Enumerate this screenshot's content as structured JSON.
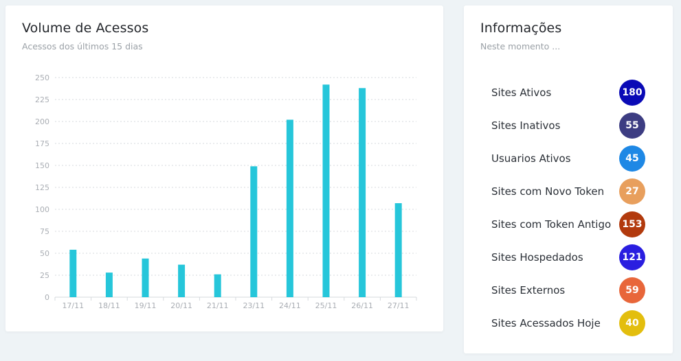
{
  "chart_card": {
    "title": "Volume de Acessos",
    "subtitle": "Acessos dos últimos 15 dias"
  },
  "chart_data": {
    "type": "bar",
    "categories": [
      "17/11",
      "18/11",
      "19/11",
      "20/11",
      "21/11",
      "23/11",
      "24/11",
      "25/11",
      "26/11",
      "27/11"
    ],
    "values": [
      54,
      28,
      44,
      37,
      26,
      149,
      202,
      242,
      238,
      107
    ],
    "ylim": [
      0,
      250
    ],
    "yticks": [
      0,
      25,
      50,
      75,
      100,
      125,
      150,
      175,
      200,
      225,
      250
    ],
    "grid": true,
    "bar_color": "#26c6da",
    "title": "",
    "xlabel": "",
    "ylabel": ""
  },
  "info_card": {
    "title": "Informações",
    "subtitle": "Neste momento ...",
    "items": [
      {
        "label": "Sites Ativos",
        "value": "180",
        "color": "#0a0ab6"
      },
      {
        "label": "Sites Inativos",
        "value": "55",
        "color": "#3d3d82"
      },
      {
        "label": "Usuarios Ativos",
        "value": "45",
        "color": "#1e88e5"
      },
      {
        "label": "Sites com Novo Token",
        "value": "27",
        "color": "#e89f5d"
      },
      {
        "label": "Sites com Token Antigo",
        "value": "153",
        "color": "#b23a0d"
      },
      {
        "label": "Sites Hospedados",
        "value": "121",
        "color": "#2a1ee0"
      },
      {
        "label": "Sites Externos",
        "value": "59",
        "color": "#e8663a"
      },
      {
        "label": "Sites Acessados Hoje",
        "value": "40",
        "color": "#e3be0e"
      }
    ]
  }
}
